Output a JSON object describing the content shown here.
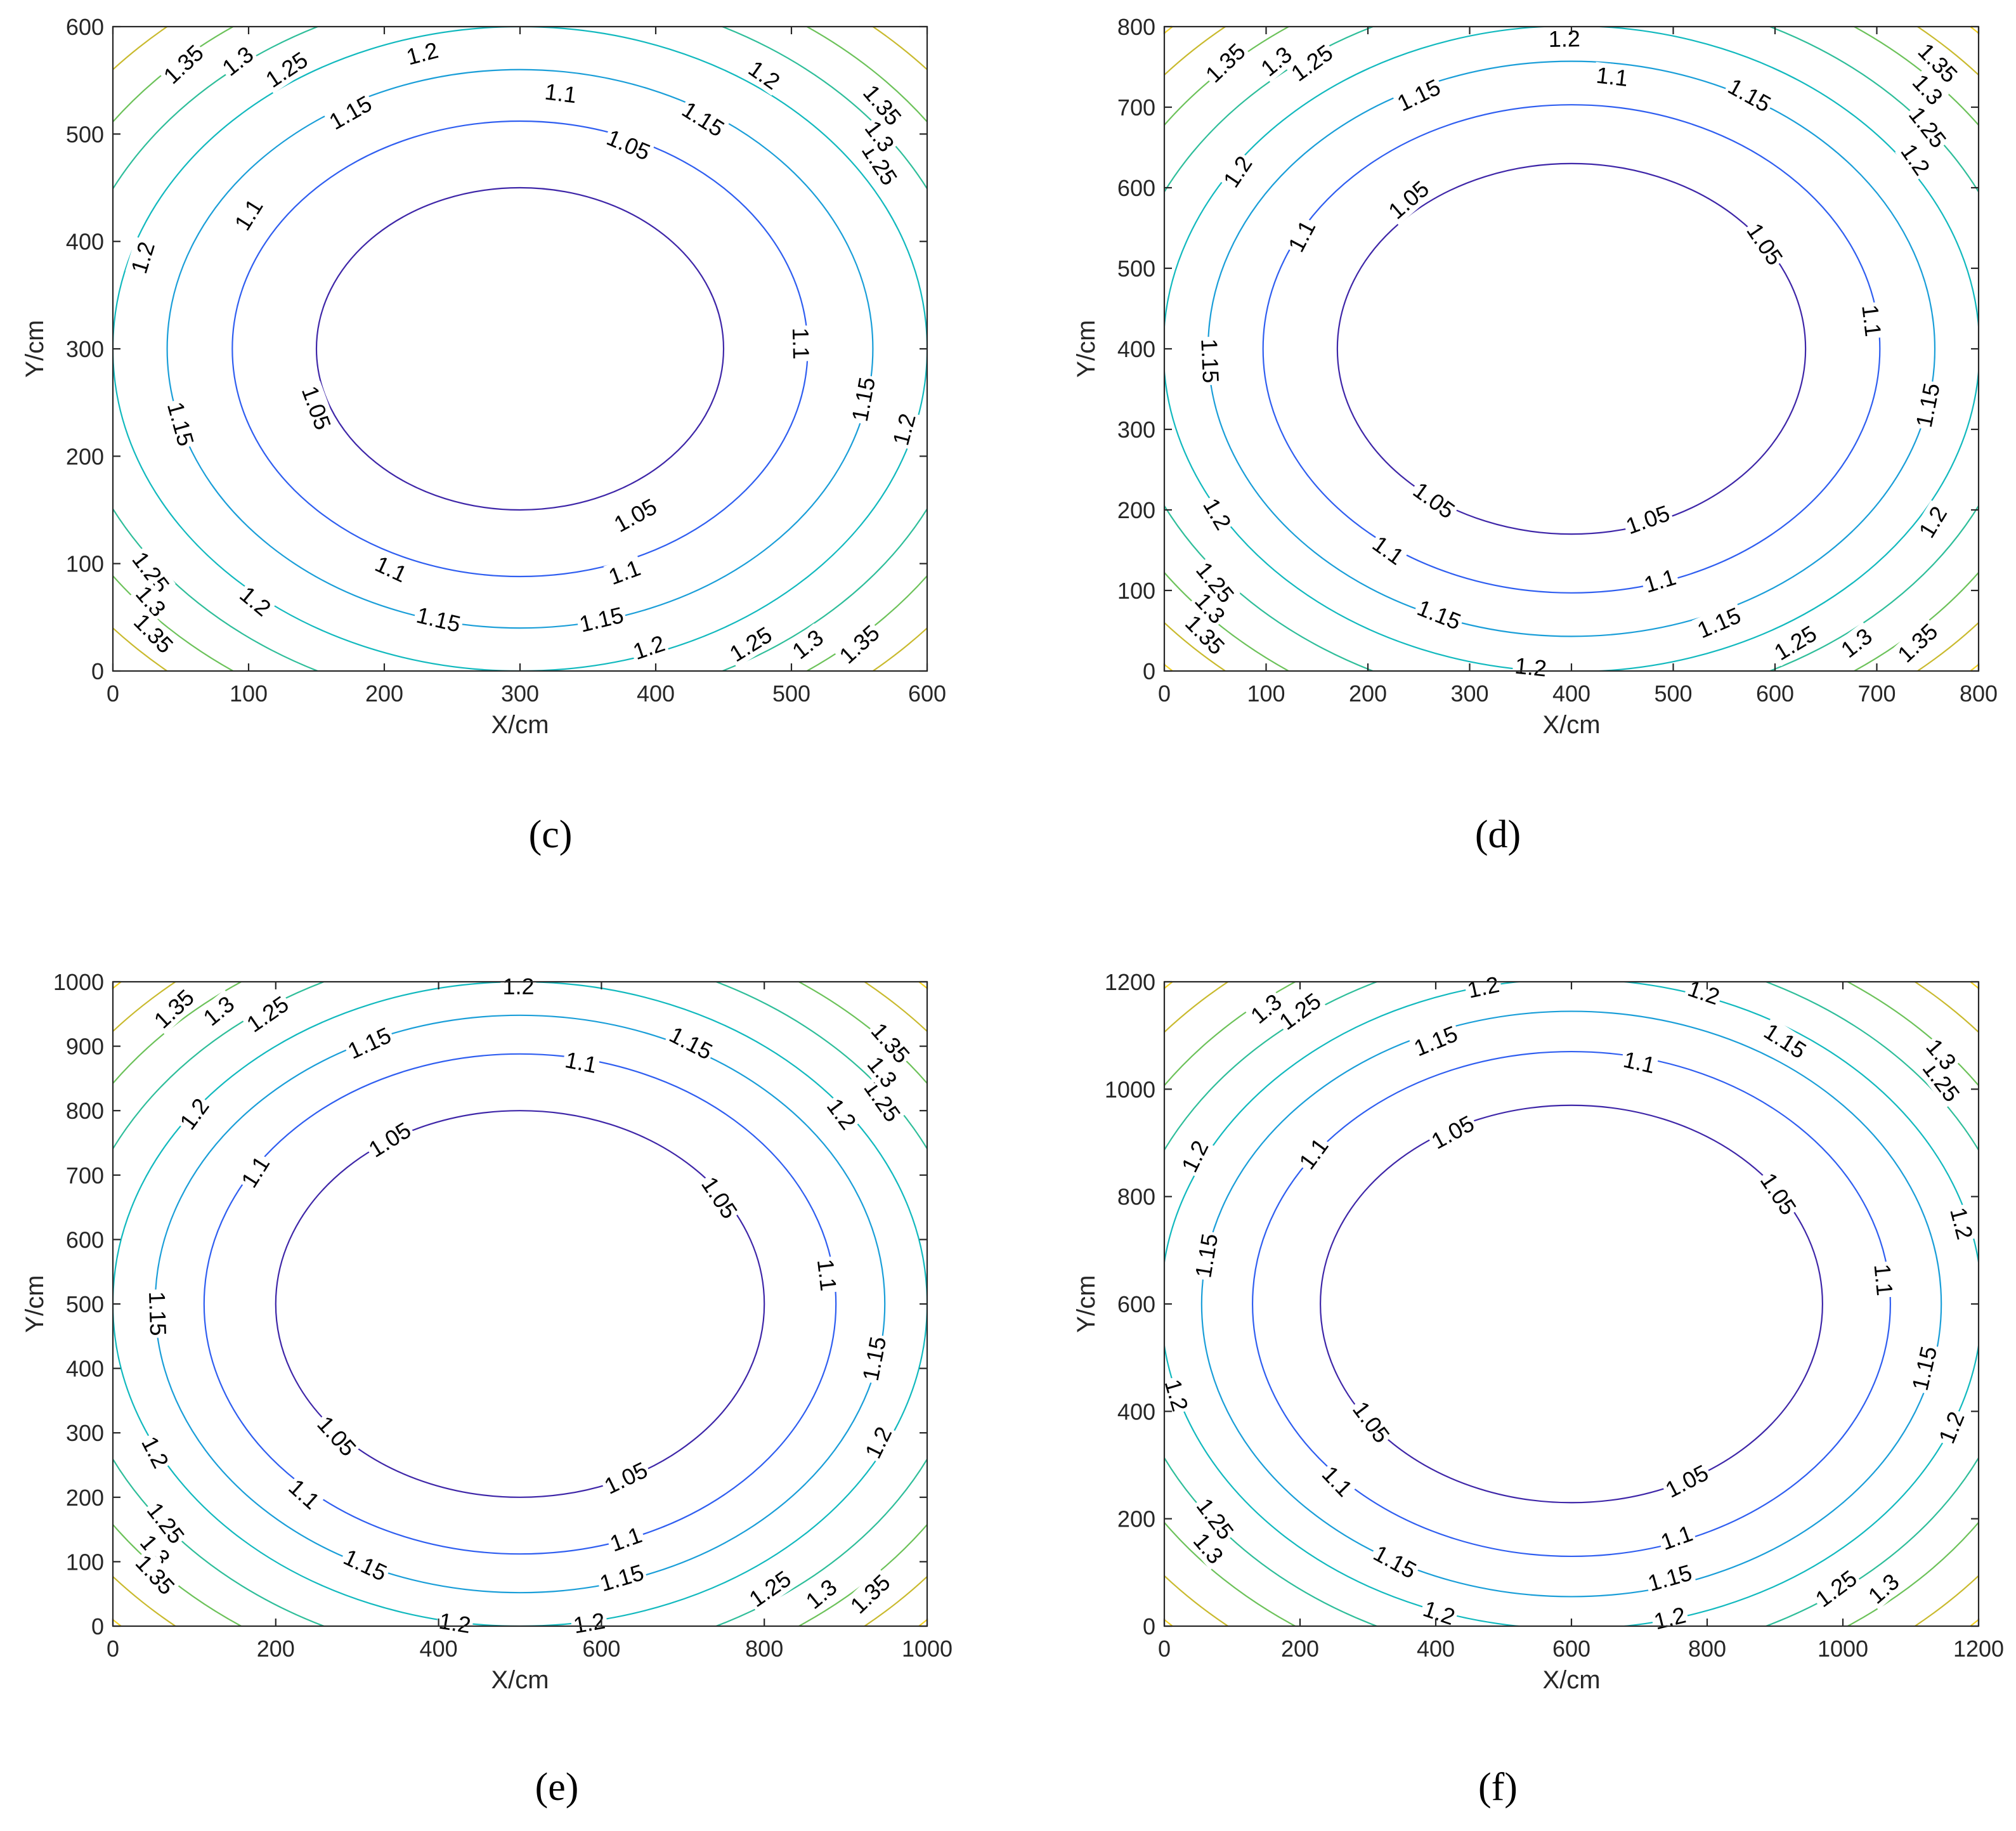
{
  "chart_data": [
    {
      "type": "contour",
      "panel_label": "(c)",
      "xlabel": "X/cm",
      "ylabel": "Y/cm",
      "xlim": [
        0,
        600
      ],
      "ylim": [
        0,
        600
      ],
      "xticks": [
        "0",
        "100",
        "200",
        "300",
        "400",
        "500",
        "600"
      ],
      "yticks": [
        "0",
        "100",
        "200",
        "300",
        "400",
        "500",
        "600"
      ],
      "center": [
        300,
        300
      ],
      "levels": [
        {
          "value": "1.05",
          "a": 150,
          "b": 150,
          "color": "#3e26a8"
        },
        {
          "value": "1.1",
          "a": 212,
          "b": 212,
          "color": "#2f5ef0"
        },
        {
          "value": "1.15",
          "a": 260,
          "b": 260,
          "color": "#1a9ed8"
        },
        {
          "value": "1.2",
          "a": 300,
          "b": 300,
          "color": "#12b9be"
        },
        {
          "value": "1.25",
          "a": 335,
          "b": 335,
          "color": "#2fbe9a"
        },
        {
          "value": "1.3",
          "a": 367,
          "b": 367,
          "color": "#6cc25a"
        },
        {
          "value": "1.35",
          "a": 397,
          "b": 397,
          "color": "#c9ba2e"
        },
        {
          "value": "",
          "a": 424,
          "b": 424,
          "color": "#f5d425"
        }
      ],
      "labels": [
        {
          "text": "1.05",
          "x": 380,
          "y": 490
        },
        {
          "text": "1.05",
          "x": 150,
          "y": 245
        },
        {
          "text": "1.05",
          "x": 385,
          "y": 145
        },
        {
          "text": "1.1",
          "x": 330,
          "y": 538
        },
        {
          "text": "1.1",
          "x": 100,
          "y": 425
        },
        {
          "text": "1.1",
          "x": 507,
          "y": 305
        },
        {
          "text": "1.1",
          "x": 205,
          "y": 95
        },
        {
          "text": "1.1",
          "x": 377,
          "y": 92
        },
        {
          "text": "1.15",
          "x": 175,
          "y": 520
        },
        {
          "text": "1.15",
          "x": 435,
          "y": 514
        },
        {
          "text": "1.15",
          "x": 50,
          "y": 230
        },
        {
          "text": "1.15",
          "x": 553,
          "y": 253
        },
        {
          "text": "1.15",
          "x": 240,
          "y": 48
        },
        {
          "text": "1.15",
          "x": 360,
          "y": 48
        },
        {
          "text": "1.2",
          "x": 228,
          "y": 575
        },
        {
          "text": "1.2",
          "x": 480,
          "y": 555
        },
        {
          "text": "1.2",
          "x": 22,
          "y": 385
        },
        {
          "text": "1.2",
          "x": 583,
          "y": 225
        },
        {
          "text": "1.2",
          "x": 105,
          "y": 65
        },
        {
          "text": "1.2",
          "x": 395,
          "y": 22
        },
        {
          "text": "1.25",
          "x": 128,
          "y": 560
        },
        {
          "text": "1.25",
          "x": 565,
          "y": 472
        },
        {
          "text": "1.25",
          "x": 28,
          "y": 92
        },
        {
          "text": "1.25",
          "x": 470,
          "y": 25
        },
        {
          "text": "1.3",
          "x": 92,
          "y": 568
        },
        {
          "text": "1.3",
          "x": 565,
          "y": 498
        },
        {
          "text": "1.3",
          "x": 28,
          "y": 65
        },
        {
          "text": "1.3",
          "x": 512,
          "y": 25
        },
        {
          "text": "1.35",
          "x": 52,
          "y": 565
        },
        {
          "text": "1.35",
          "x": 567,
          "y": 527
        },
        {
          "text": "1.35",
          "x": 30,
          "y": 35
        },
        {
          "text": "1.35",
          "x": 550,
          "y": 25
        }
      ]
    },
    {
      "type": "contour",
      "panel_label": "(d)",
      "xlabel": "X/cm",
      "ylabel": "Y/cm",
      "xlim": [
        0,
        800
      ],
      "ylim": [
        0,
        800
      ],
      "xticks": [
        "0",
        "100",
        "200",
        "300",
        "400",
        "500",
        "600",
        "700",
        "800"
      ],
      "yticks": [
        "0",
        "100",
        "200",
        "300",
        "400",
        "500",
        "600",
        "700",
        "800"
      ],
      "center": [
        400,
        400
      ],
      "levels": [
        {
          "value": "1.05",
          "a": 230,
          "b": 230,
          "color": "#3e26a8"
        },
        {
          "value": "1.1",
          "a": 303,
          "b": 303,
          "color": "#2f5ef0"
        },
        {
          "value": "1.15",
          "a": 357,
          "b": 357,
          "color": "#1a9ed8"
        },
        {
          "value": "1.2",
          "a": 401,
          "b": 401,
          "color": "#12b9be"
        },
        {
          "value": "1.25",
          "a": 445,
          "b": 445,
          "color": "#2fbe9a"
        },
        {
          "value": "1.3",
          "a": 487,
          "b": 487,
          "color": "#6cc25a"
        },
        {
          "value": "1.35",
          "a": 525,
          "b": 525,
          "color": "#c9ba2e"
        },
        {
          "value": "",
          "a": 560,
          "b": 560,
          "color": "#f5d425"
        }
      ],
      "labels": [
        {
          "text": "1.05",
          "x": 240,
          "y": 585
        },
        {
          "text": "1.05",
          "x": 590,
          "y": 530
        },
        {
          "text": "1.05",
          "x": 265,
          "y": 212
        },
        {
          "text": "1.05",
          "x": 475,
          "y": 188
        },
        {
          "text": "1.1",
          "x": 440,
          "y": 738
        },
        {
          "text": "1.1",
          "x": 135,
          "y": 540
        },
        {
          "text": "1.1",
          "x": 695,
          "y": 435
        },
        {
          "text": "1.1",
          "x": 220,
          "y": 150
        },
        {
          "text": "1.1",
          "x": 487,
          "y": 112
        },
        {
          "text": "1.15",
          "x": 250,
          "y": 715
        },
        {
          "text": "1.15",
          "x": 575,
          "y": 715
        },
        {
          "text": "1.15",
          "x": 45,
          "y": 385
        },
        {
          "text": "1.15",
          "x": 750,
          "y": 330
        },
        {
          "text": "1.15",
          "x": 270,
          "y": 70
        },
        {
          "text": "1.15",
          "x": 545,
          "y": 60
        },
        {
          "text": "1.2",
          "x": 393,
          "y": 785
        },
        {
          "text": "1.2",
          "x": 72,
          "y": 620
        },
        {
          "text": "1.2",
          "x": 738,
          "y": 635
        },
        {
          "text": "1.2",
          "x": 52,
          "y": 195
        },
        {
          "text": "1.2",
          "x": 755,
          "y": 185
        },
        {
          "text": "1.2",
          "x": 360,
          "y": 5
        },
        {
          "text": "1.25",
          "x": 145,
          "y": 755
        },
        {
          "text": "1.25",
          "x": 750,
          "y": 675
        },
        {
          "text": "1.25",
          "x": 50,
          "y": 110
        },
        {
          "text": "1.25",
          "x": 620,
          "y": 35
        },
        {
          "text": "1.3",
          "x": 110,
          "y": 757
        },
        {
          "text": "1.3",
          "x": 750,
          "y": 722
        },
        {
          "text": "1.3",
          "x": 45,
          "y": 78
        },
        {
          "text": "1.3",
          "x": 680,
          "y": 35
        },
        {
          "text": "1.35",
          "x": 60,
          "y": 755
        },
        {
          "text": "1.35",
          "x": 760,
          "y": 755
        },
        {
          "text": "1.35",
          "x": 40,
          "y": 45
        },
        {
          "text": "1.35",
          "x": 740,
          "y": 35
        }
      ]
    },
    {
      "type": "contour",
      "panel_label": "(e)",
      "xlabel": "X/cm",
      "ylabel": "Y/cm",
      "xlim": [
        0,
        1000
      ],
      "ylim": [
        0,
        1000
      ],
      "xticks": [
        "0",
        "200",
        "400",
        "600",
        "800",
        "1000"
      ],
      "yticks": [
        "0",
        "100",
        "200",
        "300",
        "400",
        "500",
        "600",
        "700",
        "800",
        "900",
        "1000"
      ],
      "center": [
        500,
        500
      ],
      "levels": [
        {
          "value": "1.05",
          "a": 300,
          "b": 300,
          "color": "#3e26a8"
        },
        {
          "value": "1.1",
          "a": 388,
          "b": 388,
          "color": "#2f5ef0"
        },
        {
          "value": "1.15",
          "a": 448,
          "b": 448,
          "color": "#1a9ed8"
        },
        {
          "value": "1.2",
          "a": 500,
          "b": 500,
          "color": "#12b9be"
        },
        {
          "value": "1.25",
          "a": 555,
          "b": 555,
          "color": "#2fbe9a"
        },
        {
          "value": "1.3",
          "a": 606,
          "b": 606,
          "color": "#6cc25a"
        },
        {
          "value": "1.35",
          "a": 655,
          "b": 655,
          "color": "#c9ba2e"
        },
        {
          "value": "",
          "a": 700,
          "b": 700,
          "color": "#f5d425"
        }
      ],
      "labels": [
        {
          "text": "1.05",
          "x": 340,
          "y": 755
        },
        {
          "text": "1.05",
          "x": 745,
          "y": 665
        },
        {
          "text": "1.05",
          "x": 275,
          "y": 295
        },
        {
          "text": "1.05",
          "x": 630,
          "y": 230
        },
        {
          "text": "1.1",
          "x": 575,
          "y": 875
        },
        {
          "text": "1.1",
          "x": 175,
          "y": 705
        },
        {
          "text": "1.1",
          "x": 877,
          "y": 545
        },
        {
          "text": "1.1",
          "x": 235,
          "y": 205
        },
        {
          "text": "1.1",
          "x": 630,
          "y": 135
        },
        {
          "text": "1.15",
          "x": 315,
          "y": 905
        },
        {
          "text": "1.15",
          "x": 710,
          "y": 905
        },
        {
          "text": "1.15",
          "x": 55,
          "y": 485
        },
        {
          "text": "1.15",
          "x": 935,
          "y": 415
        },
        {
          "text": "1.15",
          "x": 310,
          "y": 95
        },
        {
          "text": "1.15",
          "x": 625,
          "y": 75
        },
        {
          "text": "1.2",
          "x": 498,
          "y": 993
        },
        {
          "text": "1.2",
          "x": 100,
          "y": 795
        },
        {
          "text": "1.2",
          "x": 895,
          "y": 795
        },
        {
          "text": "1.2",
          "x": 52,
          "y": 270
        },
        {
          "text": "1.2",
          "x": 940,
          "y": 285
        },
        {
          "text": "1.2",
          "x": 420,
          "y": 5
        },
        {
          "text": "1.2",
          "x": 585,
          "y": 5
        },
        {
          "text": "1.25",
          "x": 190,
          "y": 950
        },
        {
          "text": "1.25",
          "x": 945,
          "y": 815
        },
        {
          "text": "1.25",
          "x": 65,
          "y": 160
        },
        {
          "text": "1.25",
          "x": 807,
          "y": 58
        },
        {
          "text": "1.3",
          "x": 130,
          "y": 955
        },
        {
          "text": "1.3",
          "x": 945,
          "y": 860
        },
        {
          "text": "1.3",
          "x": 52,
          "y": 118
        },
        {
          "text": "1.3",
          "x": 870,
          "y": 50
        },
        {
          "text": "1.35",
          "x": 75,
          "y": 958
        },
        {
          "text": "1.35",
          "x": 955,
          "y": 905
        },
        {
          "text": "1.35",
          "x": 52,
          "y": 80
        },
        {
          "text": "1.35",
          "x": 930,
          "y": 50
        }
      ]
    },
    {
      "type": "contour",
      "panel_label": "(f)",
      "xlabel": "X/cm",
      "ylabel": "Y/cm",
      "xlim": [
        0,
        1200
      ],
      "ylim": [
        0,
        1200
      ],
      "xticks": [
        "0",
        "200",
        "400",
        "600",
        "800",
        "1000",
        "1200"
      ],
      "yticks": [
        "0",
        "200",
        "400",
        "600",
        "800",
        "1000",
        "1200"
      ],
      "center": [
        600,
        600
      ],
      "levels": [
        {
          "value": "1.05",
          "a": 370,
          "b": 370,
          "color": "#3e26a8"
        },
        {
          "value": "1.1",
          "a": 470,
          "b": 470,
          "color": "#2f5ef0"
        },
        {
          "value": "1.15",
          "a": 545,
          "b": 545,
          "color": "#1a9ed8"
        },
        {
          "value": "1.2",
          "a": 605,
          "b": 605,
          "color": "#12b9be"
        },
        {
          "value": "1.25",
          "a": 665,
          "b": 665,
          "color": "#2fbe9a"
        },
        {
          "value": "1.3",
          "a": 725,
          "b": 725,
          "color": "#6cc25a"
        },
        {
          "value": "1.35",
          "a": 785,
          "b": 785,
          "color": "#c9ba2e"
        },
        {
          "value": "",
          "a": 840,
          "b": 840,
          "color": "#f5d425"
        }
      ],
      "labels": [
        {
          "text": "1.05",
          "x": 425,
          "y": 920
        },
        {
          "text": "1.05",
          "x": 905,
          "y": 805
        },
        {
          "text": "1.05",
          "x": 305,
          "y": 380
        },
        {
          "text": "1.05",
          "x": 770,
          "y": 270
        },
        {
          "text": "1.1",
          "x": 700,
          "y": 1050
        },
        {
          "text": "1.1",
          "x": 220,
          "y": 880
        },
        {
          "text": "1.1",
          "x": 1060,
          "y": 645
        },
        {
          "text": "1.1",
          "x": 255,
          "y": 270
        },
        {
          "text": "1.1",
          "x": 755,
          "y": 165
        },
        {
          "text": "1.15",
          "x": 400,
          "y": 1090
        },
        {
          "text": "1.15",
          "x": 915,
          "y": 1090
        },
        {
          "text": "1.15",
          "x": 62,
          "y": 690
        },
        {
          "text": "1.15",
          "x": 1120,
          "y": 480
        },
        {
          "text": "1.15",
          "x": 340,
          "y": 120
        },
        {
          "text": "1.15",
          "x": 745,
          "y": 90
        },
        {
          "text": "1.2",
          "x": 470,
          "y": 1190
        },
        {
          "text": "1.2",
          "x": 795,
          "y": 1180
        },
        {
          "text": "1.2",
          "x": 45,
          "y": 875
        },
        {
          "text": "1.2",
          "x": 1175,
          "y": 750
        },
        {
          "text": "1.2",
          "x": 18,
          "y": 430
        },
        {
          "text": "1.2",
          "x": 1160,
          "y": 370
        },
        {
          "text": "1.2",
          "x": 405,
          "y": 25
        },
        {
          "text": "1.2",
          "x": 745,
          "y": 15
        },
        {
          "text": "1.25",
          "x": 200,
          "y": 1145
        },
        {
          "text": "1.25",
          "x": 1145,
          "y": 1015
        },
        {
          "text": "1.25",
          "x": 75,
          "y": 200
        },
        {
          "text": "1.25",
          "x": 990,
          "y": 70
        },
        {
          "text": "1.3",
          "x": 150,
          "y": 1150
        },
        {
          "text": "1.3",
          "x": 1145,
          "y": 1065
        },
        {
          "text": "1.3",
          "x": 65,
          "y": 145
        },
        {
          "text": "1.3",
          "x": 1060,
          "y": 70
        }
      ]
    }
  ]
}
